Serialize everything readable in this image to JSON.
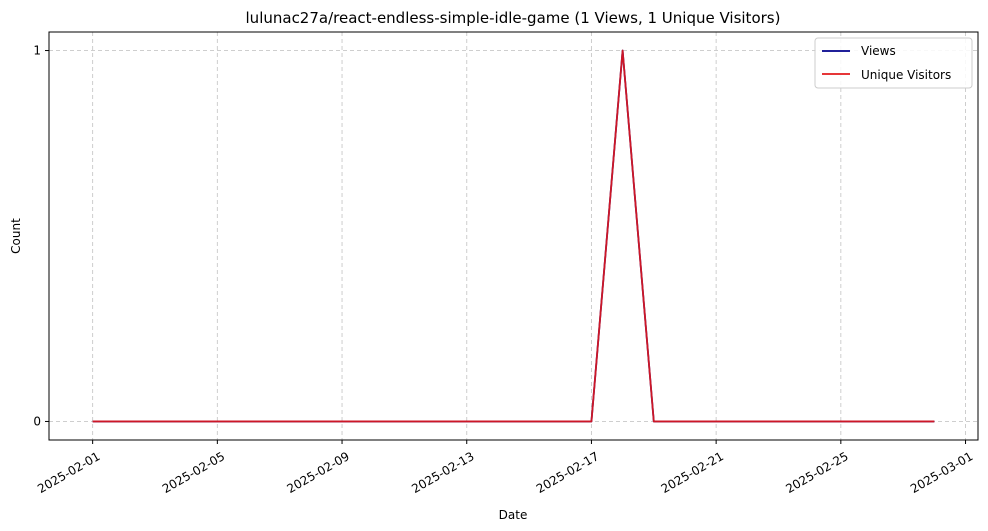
{
  "chart_data": {
    "type": "line",
    "title": "lulunac27a/react-endless-simple-idle-game (1 Views, 1 Unique Visitors)",
    "xlabel": "Date",
    "ylabel": "Count",
    "x": [
      "2025-02-01",
      "2025-02-02",
      "2025-02-03",
      "2025-02-04",
      "2025-02-05",
      "2025-02-06",
      "2025-02-07",
      "2025-02-08",
      "2025-02-09",
      "2025-02-10",
      "2025-02-11",
      "2025-02-12",
      "2025-02-13",
      "2025-02-14",
      "2025-02-15",
      "2025-02-16",
      "2025-02-17",
      "2025-02-18",
      "2025-02-19",
      "2025-02-20",
      "2025-02-21",
      "2025-02-22",
      "2025-02-23",
      "2025-02-24",
      "2025-02-25",
      "2025-02-26",
      "2025-02-27",
      "2025-02-28"
    ],
    "series": [
      {
        "name": "Views",
        "color": "#00008b",
        "values": [
          0,
          0,
          0,
          0,
          0,
          0,
          0,
          0,
          0,
          0,
          0,
          0,
          0,
          0,
          0,
          0,
          0,
          1,
          0,
          0,
          0,
          0,
          0,
          0,
          0,
          0,
          0,
          0
        ]
      },
      {
        "name": "Unique Visitors",
        "color": "#e31a1c",
        "values": [
          0,
          0,
          0,
          0,
          0,
          0,
          0,
          0,
          0,
          0,
          0,
          0,
          0,
          0,
          0,
          0,
          0,
          1,
          0,
          0,
          0,
          0,
          0,
          0,
          0,
          0,
          0,
          0
        ]
      }
    ],
    "xticks": [
      "2025-02-01",
      "2025-02-05",
      "2025-02-09",
      "2025-02-13",
      "2025-02-17",
      "2025-02-21",
      "2025-02-25",
      "2025-03-01"
    ],
    "yticks": [
      0,
      1
    ],
    "xlim": [
      "2025-01-30T14:24",
      "2025-03-01T09:36"
    ],
    "ylim": [
      -0.05,
      1.05
    ],
    "grid": true,
    "legend_position": "top-right"
  }
}
